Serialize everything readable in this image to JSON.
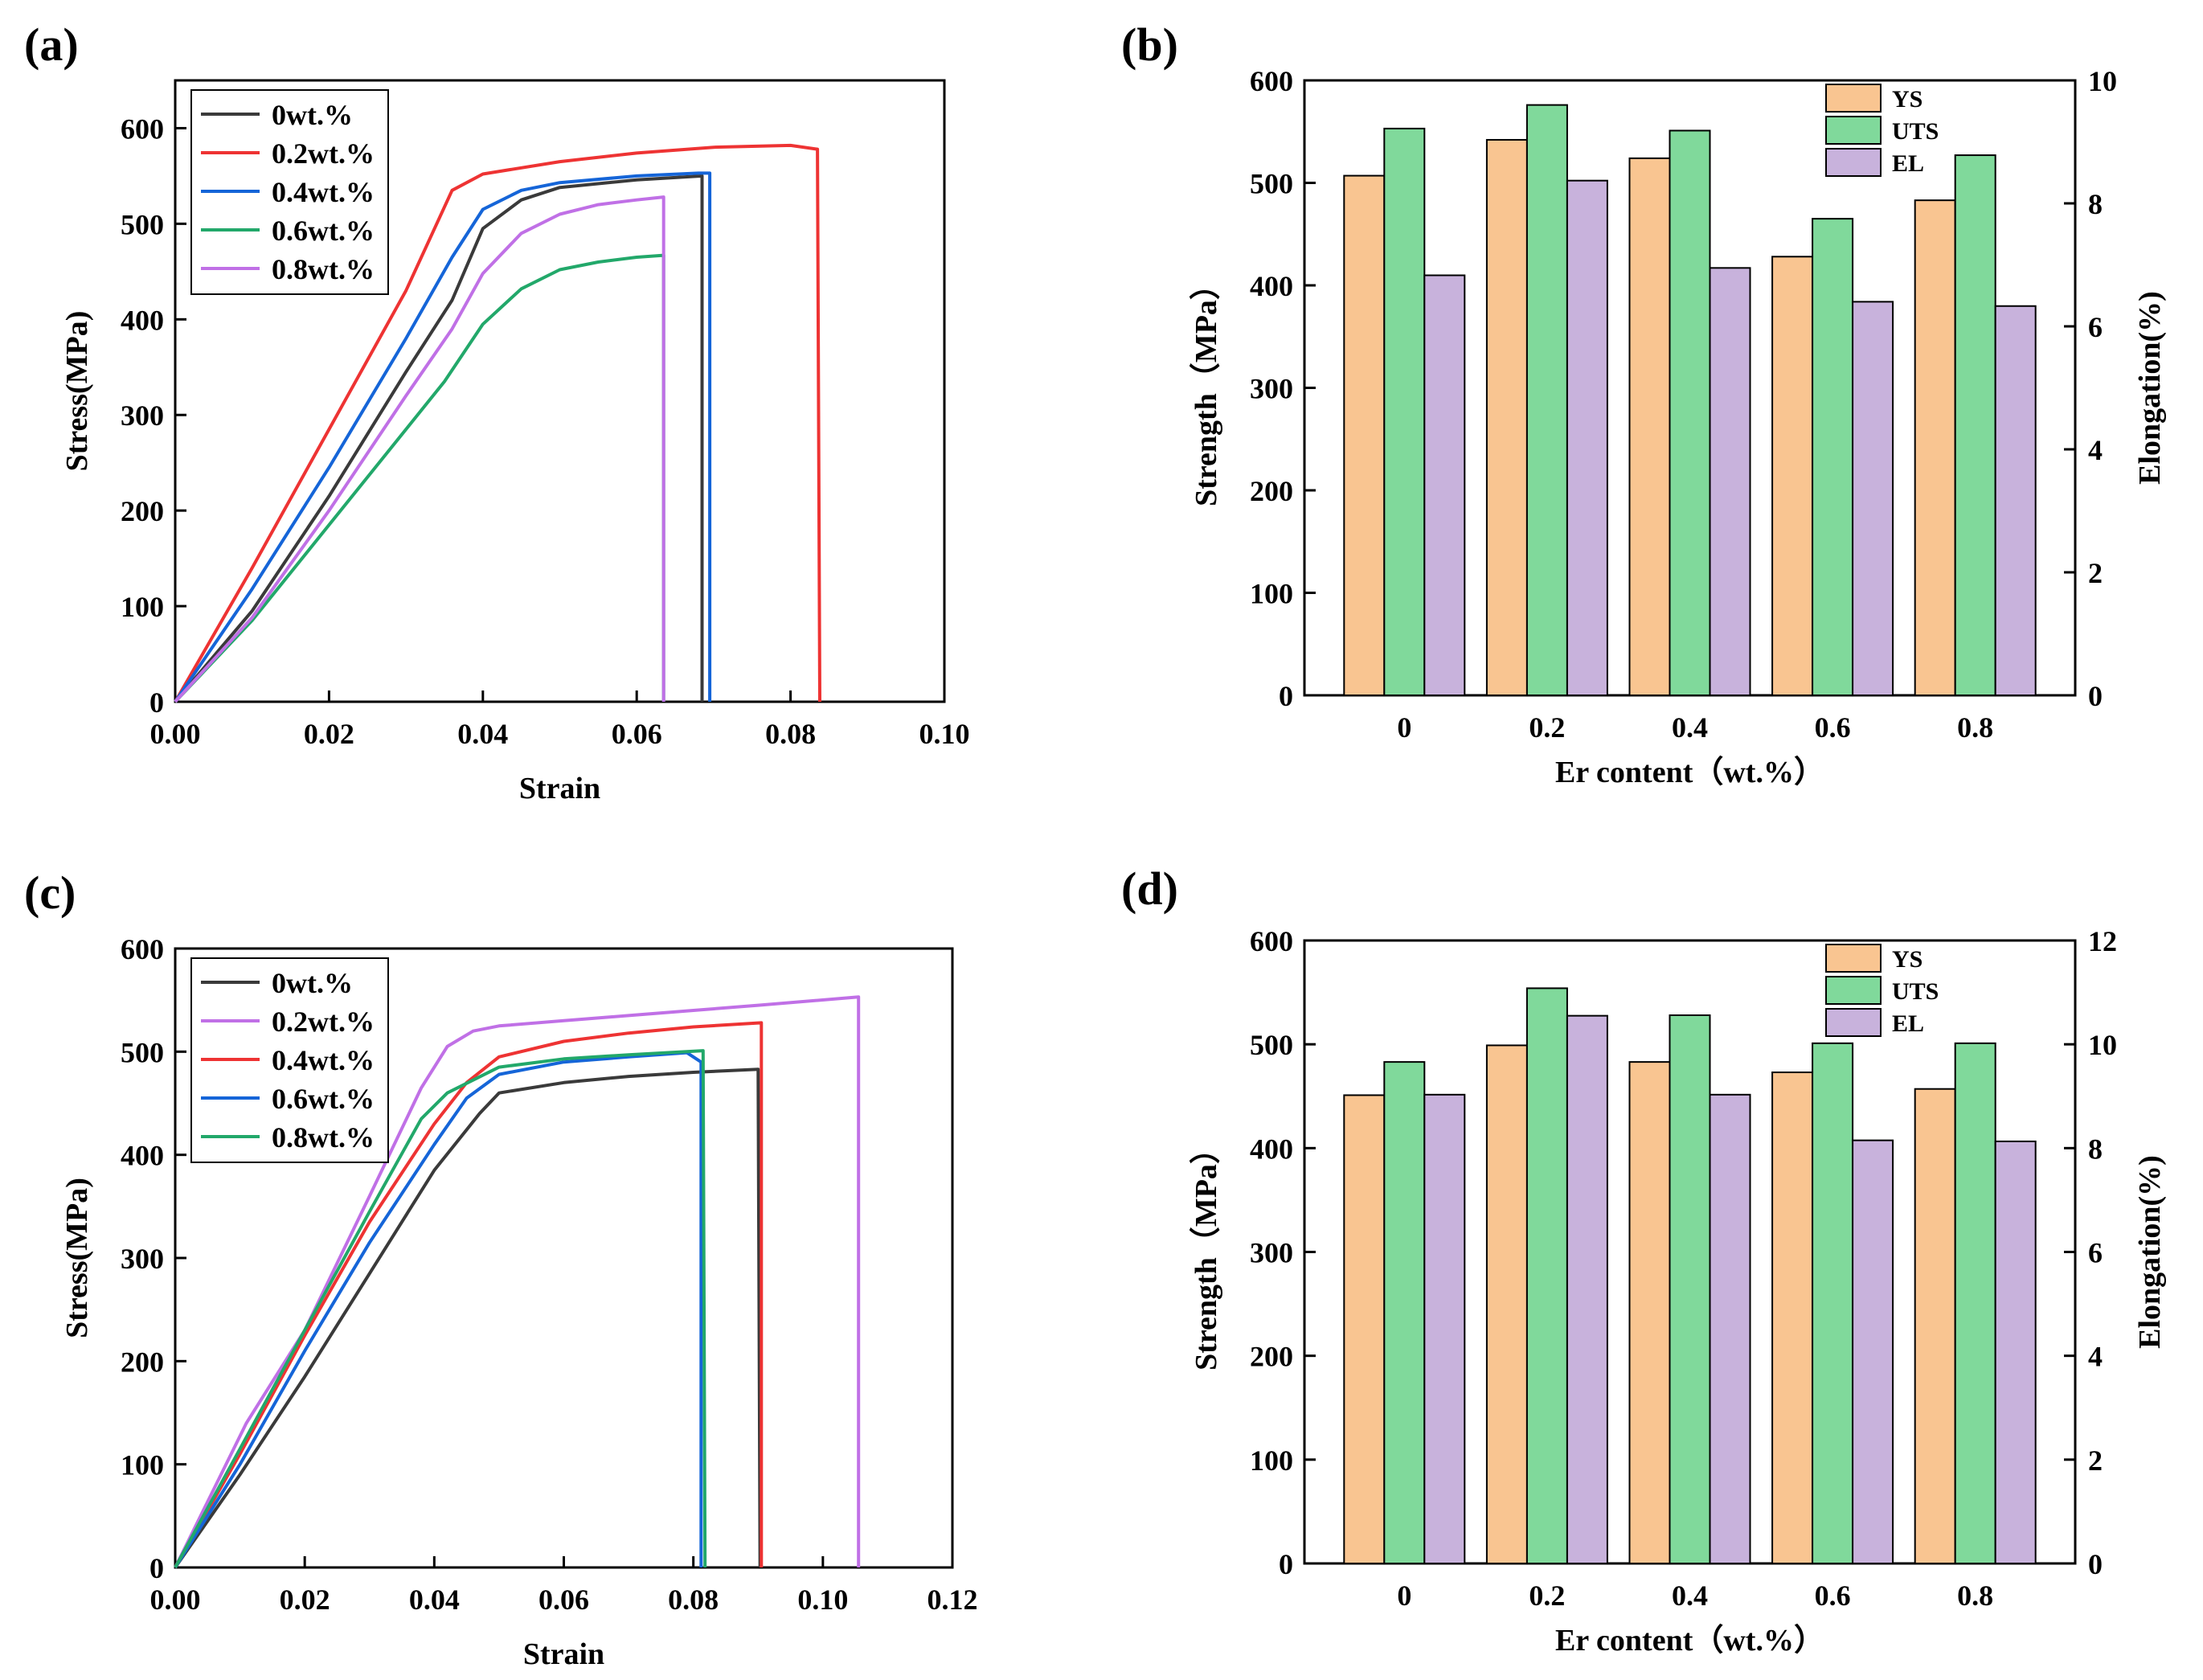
{
  "chart_data": [
    {
      "panel": "(a)",
      "type": "line",
      "xlabel": "Strain",
      "ylabel": "Stress(MPa)",
      "xlim": [
        0,
        0.1
      ],
      "ylim": [
        0,
        650
      ],
      "xticks": [
        "0.00",
        "0.02",
        "0.04",
        "0.06",
        "0.08",
        "0.10"
      ],
      "yticks": [
        "0",
        "100",
        "200",
        "300",
        "400",
        "500",
        "600"
      ],
      "legend_position": "top-left",
      "series": [
        {
          "name": "0wt.%",
          "color": "#3a3a3a",
          "points": [
            [
              0,
              0
            ],
            [
              0.01,
              95
            ],
            [
              0.02,
              215
            ],
            [
              0.03,
              345
            ],
            [
              0.036,
              420
            ],
            [
              0.04,
              495
            ],
            [
              0.045,
              525
            ],
            [
              0.05,
              538
            ],
            [
              0.06,
              546
            ],
            [
              0.0685,
              550
            ],
            [
              0.0685,
              0
            ]
          ]
        },
        {
          "name": "0.2wt.%",
          "color": "#ee3333",
          "points": [
            [
              0,
              0
            ],
            [
              0.01,
              140
            ],
            [
              0.02,
              285
            ],
            [
              0.03,
              430
            ],
            [
              0.036,
              535
            ],
            [
              0.04,
              552
            ],
            [
              0.05,
              565
            ],
            [
              0.06,
              574
            ],
            [
              0.07,
              580
            ],
            [
              0.08,
              582
            ],
            [
              0.0835,
              578
            ],
            [
              0.0838,
              0
            ]
          ]
        },
        {
          "name": "0.4wt.%",
          "color": "#1565d8",
          "points": [
            [
              0,
              0
            ],
            [
              0.01,
              118
            ],
            [
              0.02,
              245
            ],
            [
              0.03,
              380
            ],
            [
              0.036,
              465
            ],
            [
              0.04,
              515
            ],
            [
              0.045,
              535
            ],
            [
              0.05,
              543
            ],
            [
              0.06,
              550
            ],
            [
              0.068,
              553
            ],
            [
              0.0695,
              553
            ],
            [
              0.0695,
              0
            ]
          ]
        },
        {
          "name": "0.6wt.%",
          "color": "#22a86a",
          "points": [
            [
              0,
              0
            ],
            [
              0.01,
              85
            ],
            [
              0.02,
              185
            ],
            [
              0.028,
              265
            ],
            [
              0.035,
              335
            ],
            [
              0.04,
              395
            ],
            [
              0.045,
              432
            ],
            [
              0.05,
              452
            ],
            [
              0.055,
              460
            ],
            [
              0.06,
              465
            ],
            [
              0.0635,
              467
            ],
            [
              0.0635,
              0
            ]
          ]
        },
        {
          "name": "0.8wt.%",
          "color": "#c070e6",
          "points": [
            [
              0,
              0
            ],
            [
              0.01,
              88
            ],
            [
              0.02,
              200
            ],
            [
              0.03,
              320
            ],
            [
              0.036,
              390
            ],
            [
              0.04,
              448
            ],
            [
              0.045,
              490
            ],
            [
              0.05,
              510
            ],
            [
              0.055,
              520
            ],
            [
              0.06,
              525
            ],
            [
              0.0635,
              528
            ],
            [
              0.0635,
              0
            ]
          ]
        }
      ]
    },
    {
      "panel": "(b)",
      "type": "bar",
      "xlabel": "Er content（wt.%）",
      "ylabel": "Strength（MPa）",
      "y2label": "Elongation(%)",
      "categories": [
        "0",
        "0.2",
        "0.4",
        "0.6",
        "0.8"
      ],
      "ylim": [
        0,
        600
      ],
      "y2lim": [
        0,
        10
      ],
      "yticks": [
        "0",
        "100",
        "200",
        "300",
        "400",
        "500",
        "600"
      ],
      "y2ticks": [
        "0",
        "2",
        "4",
        "6",
        "8",
        "10"
      ],
      "legend_position": "top-right",
      "series": [
        {
          "name": "YS",
          "axis": "left",
          "color": "#f9c591",
          "values": [
            507,
            542,
            524,
            428,
            483
          ]
        },
        {
          "name": "UTS",
          "axis": "left",
          "color": "#80d99b",
          "values": [
            553,
            576,
            551,
            465,
            527
          ]
        },
        {
          "name": "EL",
          "axis": "right",
          "color": "#c8b2dc",
          "values": [
            6.83,
            8.37,
            6.95,
            6.4,
            6.33
          ]
        }
      ]
    },
    {
      "panel": "(c)",
      "type": "line",
      "xlabel": "Strain",
      "ylabel": "Stress(MPa)",
      "xlim": [
        0,
        0.12
      ],
      "ylim": [
        0,
        600
      ],
      "xticks": [
        "0.00",
        "0.02",
        "0.04",
        "0.06",
        "0.08",
        "0.10",
        "0.12"
      ],
      "yticks": [
        "0",
        "100",
        "200",
        "300",
        "400",
        "500",
        "600"
      ],
      "legend_position": "top-left",
      "series": [
        {
          "name": "0wt.%",
          "color": "#3a3a3a",
          "points": [
            [
              0,
              0
            ],
            [
              0.01,
              90
            ],
            [
              0.02,
              185
            ],
            [
              0.03,
              285
            ],
            [
              0.04,
              385
            ],
            [
              0.047,
              440
            ],
            [
              0.05,
              460
            ],
            [
              0.06,
              470
            ],
            [
              0.07,
              476
            ],
            [
              0.08,
              480
            ],
            [
              0.09,
              483
            ],
            [
              0.0903,
              0
            ]
          ]
        },
        {
          "name": "0.2wt.%",
          "color": "#c070e6",
          "points": [
            [
              0,
              0
            ],
            [
              0.011,
              140
            ],
            [
              0.02,
              230
            ],
            [
              0.03,
              360
            ],
            [
              0.038,
              465
            ],
            [
              0.042,
              505
            ],
            [
              0.046,
              520
            ],
            [
              0.05,
              525
            ],
            [
              0.06,
              530
            ],
            [
              0.07,
              535
            ],
            [
              0.08,
              540
            ],
            [
              0.09,
              545
            ],
            [
              0.1055,
              553
            ],
            [
              0.1055,
              0
            ]
          ]
        },
        {
          "name": "0.4wt.%",
          "color": "#ee3333",
          "points": [
            [
              0,
              0
            ],
            [
              0.01,
              110
            ],
            [
              0.02,
              225
            ],
            [
              0.03,
              335
            ],
            [
              0.04,
              430
            ],
            [
              0.045,
              470
            ],
            [
              0.05,
              495
            ],
            [
              0.06,
              510
            ],
            [
              0.07,
              518
            ],
            [
              0.08,
              524
            ],
            [
              0.0905,
              528
            ],
            [
              0.0905,
              0
            ]
          ]
        },
        {
          "name": "0.6wt.%",
          "color": "#1565d8",
          "points": [
            [
              0,
              0
            ],
            [
              0.01,
              100
            ],
            [
              0.02,
              210
            ],
            [
              0.03,
              315
            ],
            [
              0.04,
              410
            ],
            [
              0.045,
              455
            ],
            [
              0.05,
              478
            ],
            [
              0.06,
              490
            ],
            [
              0.07,
              495
            ],
            [
              0.079,
              499
            ],
            [
              0.0812,
              490
            ],
            [
              0.0812,
              0
            ]
          ]
        },
        {
          "name": "0.8wt.%",
          "color": "#22a86a",
          "points": [
            [
              0,
              0
            ],
            [
              0.01,
              115
            ],
            [
              0.02,
              230
            ],
            [
              0.03,
              345
            ],
            [
              0.038,
              435
            ],
            [
              0.042,
              460
            ],
            [
              0.05,
              485
            ],
            [
              0.06,
              493
            ],
            [
              0.07,
              497
            ],
            [
              0.0815,
              501
            ],
            [
              0.0818,
              0
            ]
          ]
        }
      ]
    },
    {
      "panel": "(d)",
      "type": "bar",
      "xlabel": "Er content（wt.%）",
      "ylabel": "Strength（MPa）",
      "y2label": "Elongation(%)",
      "categories": [
        "0",
        "0.2",
        "0.4",
        "0.6",
        "0.8"
      ],
      "ylim": [
        0,
        600
      ],
      "y2lim": [
        0,
        12
      ],
      "yticks": [
        "0",
        "100",
        "200",
        "300",
        "400",
        "500",
        "600"
      ],
      "y2ticks": [
        "0",
        "2",
        "4",
        "6",
        "8",
        "10",
        "12"
      ],
      "legend_position": "top-right",
      "series": [
        {
          "name": "YS",
          "axis": "left",
          "color": "#f9c591",
          "values": [
            451,
            499,
            483,
            473,
            457
          ]
        },
        {
          "name": "UTS",
          "axis": "left",
          "color": "#80d99b",
          "values": [
            483,
            554,
            528,
            501,
            501
          ]
        },
        {
          "name": "EL",
          "axis": "right",
          "color": "#c8b2dc",
          "values": [
            9.03,
            10.55,
            9.03,
            8.15,
            8.13
          ]
        }
      ]
    }
  ]
}
